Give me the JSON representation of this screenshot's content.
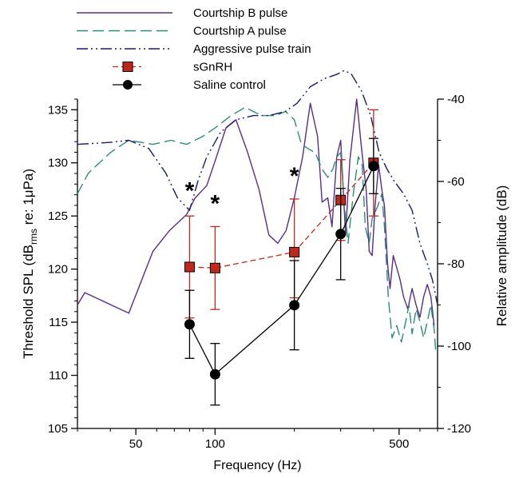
{
  "chart_data": {
    "type": "line",
    "xlabel": "Frequency (Hz)",
    "ylabel_left": {
      "main": "Threshold SPL (dB",
      "sub": "rms",
      "rest": " re: 1μPa)"
    },
    "ylabel_right": "Relative amplitude (dB)",
    "x_scale": "log",
    "xlim": [
      30,
      700
    ],
    "x_ticks": [
      50,
      100,
      500
    ],
    "ylim_left": [
      105,
      136
    ],
    "y_ticks_left": [
      105,
      110,
      115,
      120,
      125,
      130,
      135
    ],
    "ylim_right": [
      -120,
      -40
    ],
    "y_ticks_right": [
      -120,
      -100,
      -80,
      -60,
      -40
    ],
    "legend_position": "top",
    "legend": [
      {
        "label": "Courtship B pulse",
        "key": "courtship_b"
      },
      {
        "label": "Courtship A pulse",
        "key": "courtship_a"
      },
      {
        "label": "Aggressive pulse train",
        "key": "aggressive"
      },
      {
        "label": "sGnRH",
        "key": "sgnrh"
      },
      {
        "label": "Saline control",
        "key": "saline"
      }
    ],
    "spectra": [
      {
        "key": "courtship_b",
        "label": "Courtship B pulse",
        "color": "#5b2b8a",
        "dash": "",
        "points": [
          [
            30,
            -90
          ],
          [
            32,
            -87
          ],
          [
            47,
            -92
          ],
          [
            58,
            -77
          ],
          [
            67,
            -72
          ],
          [
            78,
            -68
          ],
          [
            84,
            -64
          ],
          [
            93,
            -61
          ],
          [
            100,
            -55
          ],
          [
            110,
            -47
          ],
          [
            120,
            -45
          ],
          [
            133,
            -53
          ],
          [
            147,
            -62
          ],
          [
            160,
            -73
          ],
          [
            173,
            -75
          ],
          [
            186,
            -72
          ],
          [
            200,
            -64
          ],
          [
            215,
            -54
          ],
          [
            230,
            -41
          ],
          [
            245,
            -49
          ],
          [
            255,
            -65
          ],
          [
            268,
            -64
          ],
          [
            278,
            -71
          ],
          [
            290,
            -54
          ],
          [
            300,
            -50
          ],
          [
            313,
            -73
          ],
          [
            325,
            -55
          ],
          [
            345,
            -40
          ],
          [
            360,
            -52
          ],
          [
            375,
            -62
          ],
          [
            385,
            -77
          ],
          [
            395,
            -78
          ],
          [
            405,
            -66
          ],
          [
            418,
            -56
          ],
          [
            430,
            -62
          ],
          [
            440,
            -66
          ],
          [
            452,
            -80
          ],
          [
            462,
            -86
          ],
          [
            475,
            -78
          ],
          [
            490,
            -81
          ],
          [
            505,
            -84
          ],
          [
            520,
            -88
          ],
          [
            540,
            -91
          ],
          [
            560,
            -86
          ],
          [
            580,
            -90
          ],
          [
            600,
            -93
          ],
          [
            620,
            -88
          ],
          [
            640,
            -85
          ],
          [
            660,
            -88
          ],
          [
            680,
            -95
          ]
        ]
      },
      {
        "key": "courtship_a",
        "label": "Courtship A pulse",
        "color": "#2e8b78",
        "dash": "14,6",
        "points": [
          [
            30,
            -63
          ],
          [
            33,
            -58
          ],
          [
            40,
            -53
          ],
          [
            47,
            -50
          ],
          [
            58,
            -51
          ],
          [
            68,
            -50
          ],
          [
            78,
            -51
          ],
          [
            90,
            -49
          ],
          [
            100,
            -47
          ],
          [
            115,
            -44
          ],
          [
            130,
            -42
          ],
          [
            150,
            -44
          ],
          [
            170,
            -44
          ],
          [
            185,
            -43
          ],
          [
            200,
            -45
          ],
          [
            213,
            -51
          ],
          [
            225,
            -52
          ],
          [
            240,
            -53
          ],
          [
            255,
            -57
          ],
          [
            268,
            -59
          ],
          [
            280,
            -57
          ],
          [
            290,
            -54
          ],
          [
            300,
            -53
          ],
          [
            310,
            -66
          ],
          [
            320,
            -75
          ],
          [
            335,
            -63
          ],
          [
            350,
            -54
          ],
          [
            362,
            -56
          ],
          [
            372,
            -71
          ],
          [
            385,
            -75
          ],
          [
            395,
            -69
          ],
          [
            415,
            -66
          ],
          [
            430,
            -63
          ],
          [
            440,
            -71
          ],
          [
            455,
            -88
          ],
          [
            470,
            -98
          ],
          [
            490,
            -95
          ],
          [
            510,
            -99
          ],
          [
            530,
            -94
          ],
          [
            545,
            -90
          ],
          [
            560,
            -97
          ],
          [
            580,
            -91
          ],
          [
            600,
            -94
          ],
          [
            620,
            -98
          ],
          [
            640,
            -94
          ],
          [
            660,
            -90
          ],
          [
            680,
            -96
          ],
          [
            690,
            -102
          ]
        ]
      },
      {
        "key": "aggressive",
        "label": "Aggressive pulse train",
        "color": "#151c6e",
        "dash": "14,4,2,4,2,4",
        "points": [
          [
            30,
            -51
          ],
          [
            40,
            -50.5
          ],
          [
            47,
            -50
          ],
          [
            56,
            -52
          ],
          [
            65,
            -58
          ],
          [
            72,
            -64
          ],
          [
            80,
            -67
          ],
          [
            86,
            -60
          ],
          [
            93,
            -54
          ],
          [
            105,
            -48
          ],
          [
            120,
            -45
          ],
          [
            140,
            -44
          ],
          [
            160,
            -44
          ],
          [
            185,
            -43
          ],
          [
            205,
            -41
          ],
          [
            230,
            -37
          ],
          [
            260,
            -35
          ],
          [
            290,
            -34
          ],
          [
            310,
            -33
          ],
          [
            330,
            -34
          ],
          [
            360,
            -38
          ],
          [
            390,
            -44
          ],
          [
            420,
            -53
          ],
          [
            450,
            -57
          ],
          [
            480,
            -60
          ],
          [
            520,
            -63
          ],
          [
            560,
            -67
          ],
          [
            600,
            -75
          ],
          [
            640,
            -80
          ],
          [
            670,
            -84
          ],
          [
            700,
            -90
          ]
        ]
      }
    ],
    "series": [
      {
        "name": "sGnRH",
        "color": "#c0281c",
        "marker": "square",
        "dash": "7,4",
        "x": [
          80,
          100,
          200,
          300,
          400
        ],
        "y": [
          120.2,
          120.1,
          121.6,
          126.5,
          130.0
        ],
        "err_low": [
          4.8,
          3.9,
          4.3,
          3.8,
          5.0
        ],
        "err_high": [
          4.8,
          3.9,
          5.0,
          3.8,
          5.0
        ]
      },
      {
        "name": "Saline control",
        "color": "#000000",
        "marker": "circle",
        "dash": "",
        "x": [
          80,
          100,
          200,
          300,
          400
        ],
        "y": [
          114.8,
          110.1,
          116.6,
          123.3,
          129.7
        ],
        "err_low": [
          3.2,
          2.9,
          4.2,
          4.3,
          2.6
        ],
        "err_high": [
          3.2,
          2.9,
          4.2,
          4.3,
          2.6
        ]
      }
    ],
    "annotations": [
      {
        "text": "*",
        "x": 80,
        "y": 127.6
      },
      {
        "text": "*",
        "x": 100,
        "y": 126.4
      },
      {
        "text": "*",
        "x": 200,
        "y": 129.0
      }
    ]
  }
}
